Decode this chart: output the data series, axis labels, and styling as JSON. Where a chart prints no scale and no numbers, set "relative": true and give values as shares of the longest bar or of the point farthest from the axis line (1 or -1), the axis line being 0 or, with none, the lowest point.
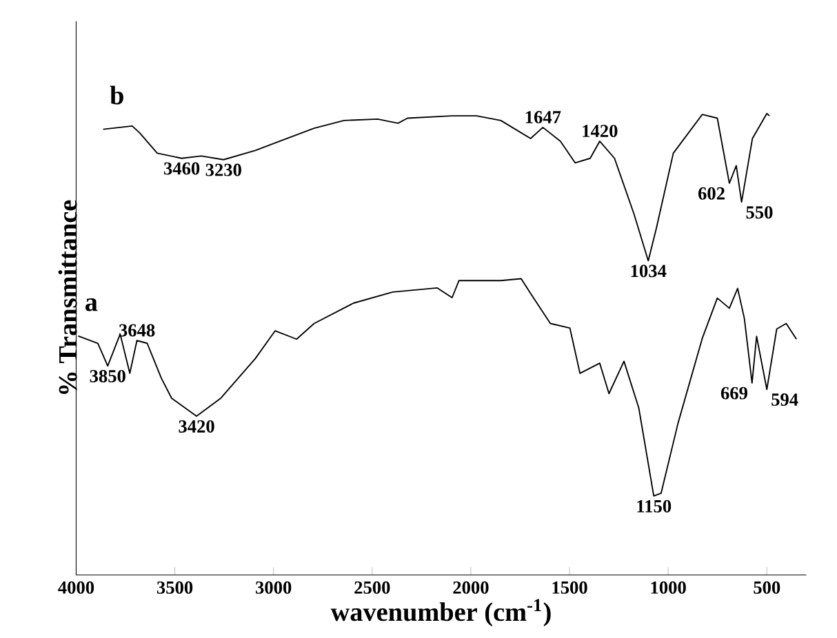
{
  "chart_data": {
    "type": "line",
    "relative": true,
    "xlabel": "wavenumber (cm$^{-1}$)",
    "ylabel": "% Transmittance",
    "xlim": [
      4000,
      300
    ],
    "xticks": [
      4000,
      3500,
      3000,
      2500,
      2000,
      1500,
      1000,
      500
    ],
    "line_style": "solid",
    "marker": "none",
    "grid": false,
    "series": [
      {
        "name": "a",
        "color": "#000000",
        "x": [
          3990,
          3890,
          3840,
          3777,
          3728,
          3692,
          3640,
          3568,
          3516,
          3390,
          3267,
          3092,
          2992,
          2883,
          2794,
          2595,
          2396,
          2170,
          2095,
          2060,
          1848,
          1745,
          1697,
          1597,
          1498,
          1447,
          1347,
          1300,
          1224,
          1149,
          1073,
          1036,
          950,
          827,
          751,
          690,
          648,
          614,
          575,
          552,
          500,
          450,
          402,
          350
        ],
        "values": [
          0.518,
          0.502,
          0.453,
          0.522,
          0.437,
          0.508,
          0.502,
          0.426,
          0.383,
          0.344,
          0.383,
          0.469,
          0.529,
          0.511,
          0.545,
          0.589,
          0.613,
          0.622,
          0.601,
          0.638,
          0.638,
          0.642,
          0.61,
          0.545,
          0.535,
          0.437,
          0.459,
          0.393,
          0.463,
          0.362,
          0.171,
          0.177,
          0.329,
          0.513,
          0.6,
          0.578,
          0.621,
          0.556,
          0.416,
          0.517,
          0.402,
          0.533,
          0.545,
          0.511
        ]
      },
      {
        "name": "b",
        "color": "#000000",
        "x": [
          3863,
          3716,
          3678,
          3589,
          3465,
          3366,
          3253,
          3092,
          2968,
          2794,
          2643,
          2472,
          2369,
          2321,
          2095,
          1971,
          1848,
          1697,
          1635,
          1546,
          1471,
          1395,
          1347,
          1272,
          1173,
          1101,
          1060,
          974,
          827,
          751,
          690,
          655,
          628,
          573,
          500,
          487
        ],
        "values": [
          0.966,
          0.973,
          0.958,
          0.914,
          0.903,
          0.908,
          0.9,
          0.92,
          0.94,
          0.968,
          0.985,
          0.988,
          0.979,
          0.99,
          0.995,
          0.995,
          0.985,
          0.946,
          0.97,
          0.94,
          0.893,
          0.903,
          0.94,
          0.903,
          0.782,
          0.681,
          0.751,
          0.914,
          0.998,
          0.99,
          0.849,
          0.887,
          0.808,
          0.946,
          1.0,
          0.995
        ]
      }
    ],
    "annotations": [
      {
        "text": "3460",
        "x": 3465,
        "y": 0.903
      },
      {
        "text": "3230",
        "x": 3253,
        "y": 0.9
      },
      {
        "text": "1647",
        "x": 1635,
        "y": 0.97
      },
      {
        "text": "1420",
        "x": 1347,
        "y": 0.94
      },
      {
        "text": "1034",
        "x": 1101,
        "y": 0.681
      },
      {
        "text": "602",
        "x": 690,
        "y": 0.849
      },
      {
        "text": "550",
        "x": 628,
        "y": 0.808
      },
      {
        "text": "3648",
        "x": 3692,
        "y": 0.508
      },
      {
        "text": "3850",
        "x": 3840,
        "y": 0.453
      },
      {
        "text": "3420",
        "x": 3390,
        "y": 0.344
      },
      {
        "text": "1150",
        "x": 1073,
        "y": 0.171
      },
      {
        "text": "669",
        "x": 575,
        "y": 0.416
      },
      {
        "text": "594",
        "x": 500,
        "y": 0.402
      }
    ]
  }
}
